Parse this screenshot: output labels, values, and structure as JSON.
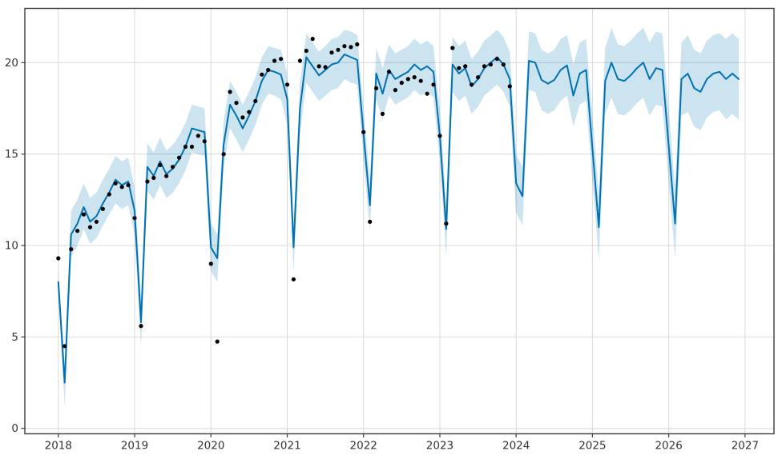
{
  "chart_data": {
    "type": "line",
    "title": "",
    "xlabel": "",
    "ylabel": "",
    "description": "Time-series forecast plot: black dots are monthly observations, blue line is the model forecast, shaded light-blue region is the uncertainty interval. Sharp seasonal dips occur at the start of each year.",
    "x_start_month": "2018-01",
    "x_interval": "monthly",
    "history_end_month": "2023-12",
    "forecast_end_month": "2026-12",
    "x_tick_labels": [
      "2018",
      "2019",
      "2020",
      "2021",
      "2022",
      "2023",
      "2024",
      "2025",
      "2026",
      "2027"
    ],
    "y_tick_labels": [
      "0",
      "5",
      "10",
      "15",
      "20"
    ],
    "y_tick_values": [
      0,
      5,
      10,
      15,
      20
    ],
    "ylim": [
      -0.3,
      23.0
    ],
    "grid": true,
    "legend": "none",
    "colors": {
      "forecast_line": "#0072B2",
      "uncertainty_band": "rgba(0,114,178,0.2)",
      "observed_points": "#000000",
      "gridline": "#d9d9d9",
      "axis_spine": "#3b3b3b",
      "tick_label": "#333333"
    },
    "series": {
      "observed": {
        "name": "observed (y)",
        "type": "scatter",
        "values": [
          9.3,
          4.5,
          9.8,
          10.8,
          11.7,
          11.0,
          11.3,
          12.0,
          12.8,
          13.4,
          13.2,
          13.3,
          11.5,
          5.6,
          13.5,
          13.7,
          14.4,
          13.8,
          14.3,
          14.8,
          15.4,
          15.4,
          16.0,
          15.7,
          9.0,
          4.75,
          15.0,
          18.4,
          17.8,
          17.0,
          17.3,
          17.9,
          19.35,
          19.6,
          20.1,
          20.2,
          18.8,
          8.15,
          20.1,
          20.65,
          21.3,
          19.8,
          19.75,
          20.55,
          20.7,
          20.9,
          20.85,
          21.0,
          16.2,
          11.3,
          18.6,
          17.2,
          19.5,
          18.5,
          18.9,
          19.1,
          19.2,
          19.0,
          18.3,
          18.8,
          16.0,
          11.2,
          20.8,
          19.7,
          19.8,
          18.8,
          19.2,
          19.8,
          19.9,
          20.2,
          19.9,
          18.7
        ]
      },
      "yhat": {
        "name": "forecast (yhat)",
        "type": "line",
        "values": [
          8.0,
          2.5,
          10.6,
          11.2,
          12.1,
          11.3,
          11.6,
          12.3,
          12.9,
          13.6,
          13.3,
          13.5,
          11.9,
          5.8,
          14.3,
          13.8,
          14.6,
          13.9,
          14.2,
          14.7,
          15.4,
          16.4,
          16.3,
          16.2,
          9.9,
          9.3,
          15.5,
          17.7,
          17.1,
          16.4,
          17.1,
          17.9,
          19.0,
          19.6,
          19.5,
          19.35,
          18.0,
          9.9,
          17.5,
          20.3,
          19.8,
          19.3,
          19.6,
          19.9,
          20.0,
          20.45,
          20.3,
          20.15,
          16.1,
          12.2,
          19.4,
          18.3,
          19.6,
          19.1,
          19.3,
          19.5,
          19.9,
          19.6,
          19.8,
          19.5,
          16.0,
          10.9,
          19.9,
          19.4,
          19.7,
          18.7,
          19.1,
          19.7,
          20.0,
          20.3,
          19.9,
          19.1,
          13.4,
          12.7,
          20.1,
          20.0,
          19.05,
          18.85,
          19.05,
          19.6,
          19.85,
          18.2,
          19.4,
          19.6,
          15.3,
          11.0,
          19.0,
          20.0,
          19.1,
          19.0,
          19.3,
          19.7,
          20.0,
          19.1,
          19.7,
          19.6,
          15.4,
          11.2,
          19.1,
          19.4,
          18.6,
          18.4,
          19.1,
          19.4,
          19.5,
          19.1,
          19.4,
          19.1
        ]
      },
      "yhat_lower": {
        "name": "uncertainty lower bound",
        "type": "band-lower",
        "values": [
          7.4,
          1.2,
          9.4,
          10.0,
          10.9,
          10.1,
          10.4,
          11.1,
          11.7,
          12.3,
          12.0,
          12.2,
          10.6,
          4.5,
          13.0,
          12.5,
          13.3,
          12.6,
          12.9,
          13.4,
          14.1,
          15.1,
          15.0,
          14.9,
          8.6,
          8.0,
          14.2,
          16.4,
          15.8,
          15.1,
          15.8,
          16.6,
          17.7,
          18.3,
          18.2,
          18.0,
          16.6,
          8.5,
          16.1,
          18.9,
          18.4,
          17.9,
          18.2,
          18.5,
          18.6,
          19.1,
          18.9,
          18.8,
          14.7,
          10.8,
          18.0,
          16.9,
          18.2,
          17.7,
          17.9,
          18.1,
          18.5,
          18.2,
          18.4,
          18.1,
          14.6,
          9.4,
          18.4,
          17.9,
          18.2,
          17.2,
          17.6,
          18.2,
          18.5,
          18.8,
          18.4,
          17.6,
          11.8,
          11.1,
          18.5,
          18.4,
          17.4,
          17.2,
          17.4,
          17.9,
          18.2,
          16.5,
          17.7,
          17.9,
          13.5,
          9.2,
          17.2,
          18.1,
          17.2,
          17.1,
          17.4,
          17.8,
          18.1,
          17.1,
          17.7,
          17.6,
          13.4,
          9.3,
          17.1,
          17.3,
          16.5,
          16.3,
          17.0,
          17.3,
          17.4,
          16.9,
          17.2,
          16.9
        ]
      },
      "yhat_upper": {
        "name": "uncertainty upper bound",
        "type": "band-upper",
        "values": [
          8.6,
          3.6,
          11.9,
          12.5,
          13.4,
          12.6,
          12.9,
          13.6,
          14.2,
          14.9,
          14.6,
          14.8,
          13.2,
          7.1,
          15.6,
          15.1,
          15.9,
          15.2,
          15.5,
          16.0,
          16.7,
          17.7,
          17.6,
          17.5,
          11.2,
          10.6,
          16.8,
          19.0,
          18.4,
          17.7,
          18.4,
          19.2,
          20.3,
          20.9,
          20.8,
          20.7,
          19.4,
          11.2,
          18.9,
          21.6,
          21.1,
          20.6,
          20.9,
          21.3,
          21.4,
          21.8,
          21.7,
          21.5,
          17.5,
          13.6,
          20.8,
          19.7,
          21.0,
          20.5,
          20.7,
          20.9,
          21.3,
          21.0,
          21.2,
          20.9,
          17.4,
          12.3,
          21.4,
          20.9,
          21.2,
          20.2,
          20.6,
          21.2,
          21.5,
          21.8,
          21.4,
          20.6,
          15.0,
          14.3,
          21.7,
          21.6,
          20.7,
          20.5,
          20.7,
          21.3,
          21.5,
          19.9,
          21.1,
          21.3,
          17.1,
          12.8,
          20.8,
          21.9,
          21.0,
          20.9,
          21.2,
          21.6,
          21.9,
          21.1,
          21.7,
          21.6,
          17.4,
          13.1,
          21.1,
          21.5,
          20.7,
          20.5,
          21.2,
          21.5,
          21.6,
          21.3,
          21.6,
          21.3
        ]
      }
    }
  }
}
